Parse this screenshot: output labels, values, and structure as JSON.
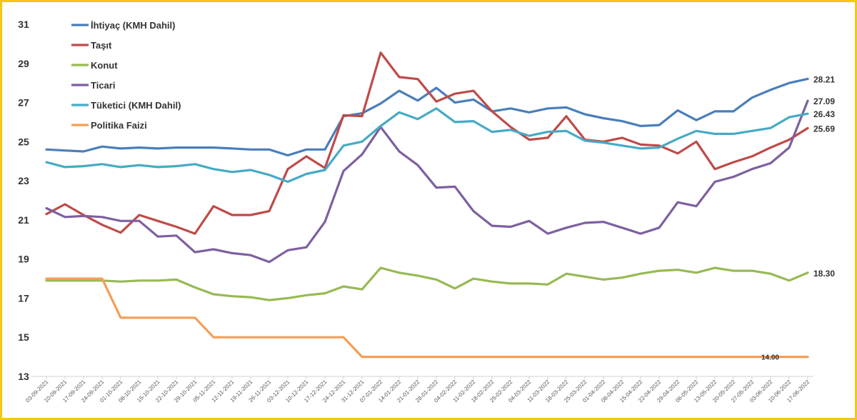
{
  "chart_data": {
    "type": "line",
    "title": "",
    "xlabel": "",
    "ylabel": "",
    "ylim": [
      13,
      31
    ],
    "yticks": [
      13,
      15,
      17,
      19,
      21,
      23,
      25,
      27,
      29,
      31
    ],
    "grid": false,
    "legend_position": "top-left",
    "x": [
      "03-09-2021",
      "10-09-2021",
      "17-09-2021",
      "24-09-2021",
      "01-10-2021",
      "08-10-2021",
      "15-10-2021",
      "22-10-2021",
      "29-10-2021",
      "05-11-2021",
      "12-11-2021",
      "19-11-2021",
      "26-11-2021",
      "03-12-2021",
      "10-12-2021",
      "17-12-2021",
      "24-12-2021",
      "31-12-2021",
      "07-01-2022",
      "14-01-2022",
      "21-01-2022",
      "28-01-2022",
      "04-02-2022",
      "11-02-2022",
      "18-02-2022",
      "25-02-2022",
      "04-03-2022",
      "11-03-2022",
      "18-03-2022",
      "25-03-2022",
      "01-04-2022",
      "08-04-2022",
      "15-04-2022",
      "22-04-2022",
      "29-04-2022",
      "06-05-2022",
      "13-05-2022",
      "20-05-2022",
      "27-05-2022",
      "03-06-2022",
      "10-06-2022",
      "17-06-2022"
    ],
    "series": [
      {
        "name": "İhtiyaç (KMH Dahil)",
        "color": "#4a7ebb",
        "values": [
          24.6,
          24.55,
          24.5,
          24.75,
          24.65,
          24.7,
          24.65,
          24.7,
          24.7,
          24.7,
          24.65,
          24.6,
          24.6,
          24.3,
          24.6,
          24.6,
          26.3,
          26.45,
          26.95,
          27.6,
          27.1,
          27.75,
          27.0,
          27.15,
          26.55,
          26.7,
          26.5,
          26.7,
          26.75,
          26.4,
          26.2,
          26.05,
          25.8,
          25.85,
          26.6,
          26.1,
          26.55,
          26.55,
          27.25,
          27.65,
          28.0,
          28.21
        ],
        "end_label": "28.21"
      },
      {
        "name": "Taşıt",
        "color": "#be4b48",
        "values": [
          21.3,
          21.8,
          21.25,
          20.75,
          20.35,
          21.25,
          20.95,
          20.65,
          20.3,
          21.7,
          21.25,
          21.25,
          21.45,
          23.6,
          24.25,
          23.65,
          26.35,
          26.3,
          29.55,
          28.3,
          28.2,
          27.05,
          27.45,
          27.6,
          26.55,
          25.75,
          25.1,
          25.2,
          26.3,
          25.1,
          25.0,
          25.2,
          24.85,
          24.8,
          24.4,
          25.0,
          23.6,
          23.95,
          24.25,
          24.7,
          25.1,
          25.69
        ],
        "end_label": "25.69"
      },
      {
        "name": "Konut",
        "color": "#98b954",
        "values": [
          17.9,
          17.9,
          17.9,
          17.9,
          17.85,
          17.9,
          17.9,
          17.95,
          17.55,
          17.2,
          17.1,
          17.05,
          16.9,
          17.0,
          17.15,
          17.25,
          17.6,
          17.45,
          18.55,
          18.3,
          18.15,
          17.95,
          17.5,
          18.0,
          17.85,
          17.75,
          17.75,
          17.7,
          18.25,
          18.1,
          17.95,
          18.05,
          18.25,
          18.4,
          18.45,
          18.3,
          18.55,
          18.4,
          18.4,
          18.25,
          17.9,
          18.3
        ],
        "end_label": "18.30"
      },
      {
        "name": "Ticari",
        "color": "#7d60a0",
        "values": [
          21.6,
          21.15,
          21.2,
          21.15,
          20.95,
          20.95,
          20.15,
          20.2,
          19.35,
          19.5,
          19.3,
          19.2,
          18.85,
          19.45,
          19.6,
          20.9,
          23.5,
          24.35,
          25.75,
          24.5,
          23.8,
          22.65,
          22.7,
          21.45,
          20.7,
          20.65,
          20.95,
          20.3,
          20.6,
          20.85,
          20.9,
          20.6,
          20.3,
          20.6,
          21.9,
          21.7,
          22.95,
          23.2,
          23.6,
          23.9,
          24.7,
          27.09
        ],
        "end_label": "27.09"
      },
      {
        "name": "Tüketici (KMH Dahil)",
        "color": "#46aac5",
        "values": [
          23.95,
          23.7,
          23.75,
          23.85,
          23.7,
          23.8,
          23.7,
          23.75,
          23.85,
          23.6,
          23.45,
          23.55,
          23.3,
          22.95,
          23.35,
          23.55,
          24.8,
          25.0,
          25.8,
          26.5,
          26.15,
          26.7,
          26.0,
          26.05,
          25.5,
          25.6,
          25.3,
          25.5,
          25.55,
          25.05,
          24.95,
          24.8,
          24.65,
          24.7,
          25.15,
          25.55,
          25.4,
          25.4,
          25.55,
          25.7,
          26.25,
          26.43
        ],
        "end_label": "26.43"
      },
      {
        "name": "Politika Faizi",
        "color": "#f59d56",
        "values": [
          18.0,
          18.0,
          18.0,
          18.0,
          16.0,
          16.0,
          16.0,
          16.0,
          16.0,
          15.0,
          15.0,
          15.0,
          15.0,
          15.0,
          15.0,
          15.0,
          15.0,
          14.0,
          14.0,
          14.0,
          14.0,
          14.0,
          14.0,
          14.0,
          14.0,
          14.0,
          14.0,
          14.0,
          14.0,
          14.0,
          14.0,
          14.0,
          14.0,
          14.0,
          14.0,
          14.0,
          14.0,
          14.0,
          14.0,
          14.0,
          14.0,
          14.0
        ],
        "end_label": "14.00"
      }
    ]
  }
}
